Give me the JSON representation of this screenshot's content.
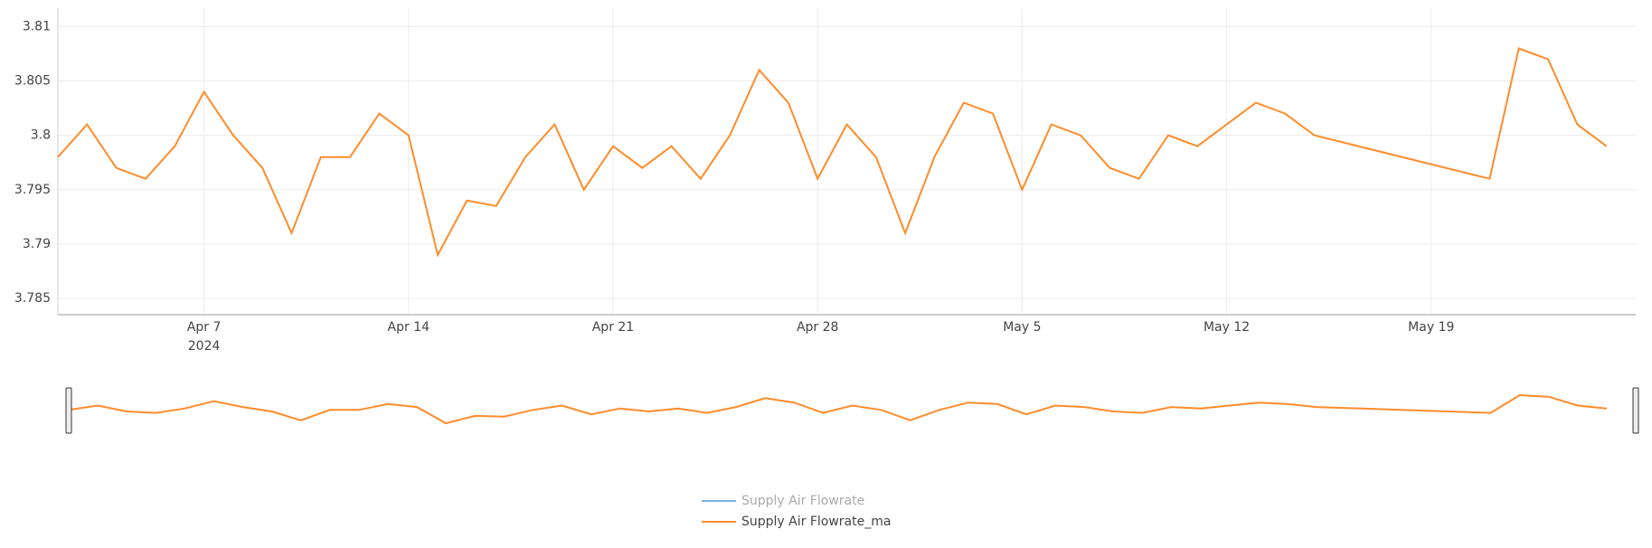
{
  "chart_data": {
    "type": "line",
    "x": [
      "2024-04-02",
      "2024-04-03",
      "2024-04-04",
      "2024-04-05",
      "2024-04-06",
      "2024-04-07",
      "2024-04-08",
      "2024-04-09",
      "2024-04-10",
      "2024-04-11",
      "2024-04-12",
      "2024-04-13",
      "2024-04-14",
      "2024-04-15",
      "2024-04-16",
      "2024-04-17",
      "2024-04-18",
      "2024-04-19",
      "2024-04-20",
      "2024-04-21",
      "2024-04-22",
      "2024-04-23",
      "2024-04-24",
      "2024-04-25",
      "2024-04-26",
      "2024-04-27",
      "2024-04-28",
      "2024-04-29",
      "2024-04-30",
      "2024-05-01",
      "2024-05-02",
      "2024-05-03",
      "2024-05-04",
      "2024-05-05",
      "2024-05-06",
      "2024-05-07",
      "2024-05-08",
      "2024-05-09",
      "2024-05-10",
      "2024-05-11",
      "2024-05-12",
      "2024-05-13",
      "2024-05-14",
      "2024-05-15",
      "2024-05-21",
      "2024-05-22",
      "2024-05-23",
      "2024-05-24",
      "2024-05-25"
    ],
    "series": [
      {
        "name": "Supply Air Flowrate",
        "color": "#7fb2e0",
        "visible": false
      },
      {
        "name": "Supply Air Flowrate_ma",
        "color": "#ff8c2a",
        "visible": true,
        "values": [
          3.798,
          3.801,
          3.797,
          3.796,
          3.799,
          3.804,
          3.8,
          3.797,
          3.791,
          3.798,
          3.798,
          3.802,
          3.8,
          3.789,
          3.794,
          3.7935,
          3.798,
          3.801,
          3.795,
          3.799,
          3.797,
          3.799,
          3.796,
          3.8,
          3.806,
          3.803,
          3.796,
          3.801,
          3.798,
          3.791,
          3.798,
          3.803,
          3.802,
          3.795,
          3.801,
          3.8,
          3.797,
          3.796,
          3.8,
          3.799,
          3.801,
          3.803,
          3.802,
          3.8,
          3.796,
          3.808,
          3.807,
          3.801,
          3.799
        ]
      }
    ],
    "xlim": [
      "2024-04-02",
      "2024-05-26"
    ],
    "xticks": [
      {
        "value": "2024-04-07",
        "label": "Apr 7"
      },
      {
        "value": "2024-04-14",
        "label": "Apr 14"
      },
      {
        "value": "2024-04-21",
        "label": "Apr 21"
      },
      {
        "value": "2024-04-28",
        "label": "Apr 28"
      },
      {
        "value": "2024-05-05",
        "label": "May 5"
      },
      {
        "value": "2024-05-12",
        "label": "May 12"
      },
      {
        "value": "2024-05-19",
        "label": "May 19"
      }
    ],
    "x_year_label": "2024",
    "ylim": [
      3.7835,
      3.8117
    ],
    "yticks": [
      3.785,
      3.79,
      3.795,
      3.8,
      3.805,
      3.81
    ],
    "grid": true,
    "range_slider": true
  }
}
